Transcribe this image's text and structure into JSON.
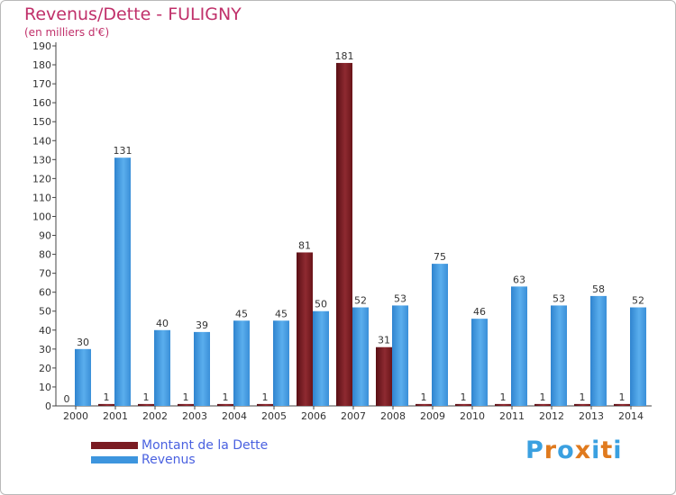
{
  "header": {
    "title": "Revenus/Dette - FULIGNY",
    "subtitle": "(en milliers d'€)"
  },
  "chart_data": {
    "type": "bar",
    "title": "Revenus/Dette - FULIGNY",
    "subtitle": "(en milliers d'€)",
    "categories": [
      "2000",
      "2001",
      "2002",
      "2003",
      "2004",
      "2005",
      "2006",
      "2007",
      "2008",
      "2009",
      "2010",
      "2011",
      "2012",
      "2013",
      "2014"
    ],
    "series": [
      {
        "name": "Montant de la Dette",
        "color": "#7a1b22",
        "values": [
          0,
          1,
          1,
          1,
          1,
          1,
          81,
          181,
          31,
          1,
          1,
          1,
          1,
          1,
          1
        ]
      },
      {
        "name": "Revenus",
        "color": "#3d95de",
        "values": [
          30,
          131,
          40,
          39,
          45,
          45,
          50,
          52,
          53,
          75,
          46,
          63,
          53,
          58,
          52
        ]
      }
    ],
    "ylim": [
      0,
      190
    ],
    "yticks": [
      0,
      10,
      20,
      30,
      40,
      50,
      60,
      70,
      80,
      90,
      100,
      110,
      120,
      130,
      140,
      150,
      160,
      170,
      180,
      190
    ],
    "grid": false,
    "legend_position": "bottom-left"
  },
  "legend": {
    "items": [
      {
        "label": "Montant de la Dette",
        "color": "#7a1b22"
      },
      {
        "label": "Revenus",
        "color": "#3d95de"
      }
    ]
  },
  "logo": {
    "text": "Proxiti",
    "letter_colors": [
      "#3aa0e0",
      "#e07a1e",
      "#3aa0e0",
      "#e07a1e",
      "#3aa0e0",
      "#e07a1e",
      "#3aa0e0"
    ]
  }
}
